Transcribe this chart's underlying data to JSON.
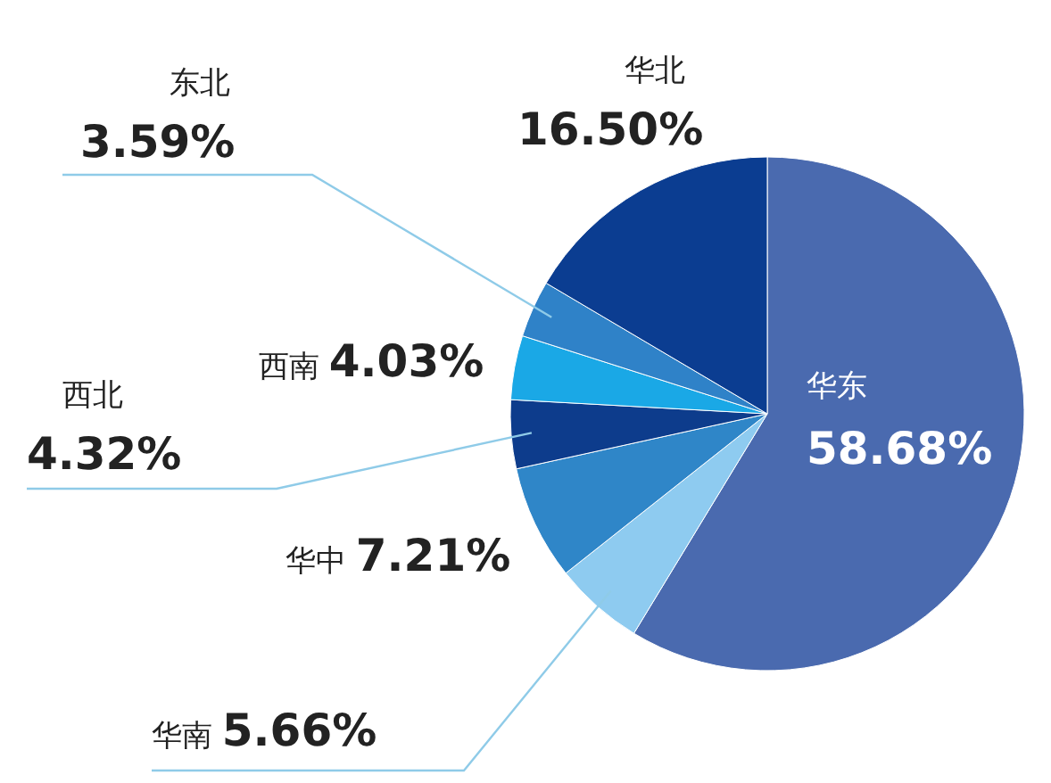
{
  "chart_data": {
    "type": "pie",
    "categories": [
      "华东",
      "华南",
      "华中",
      "西北",
      "西南",
      "东北",
      "华北"
    ],
    "values": [
      58.68,
      5.66,
      7.21,
      4.32,
      4.03,
      3.59,
      16.5
    ],
    "colors": [
      "#4a6aaf",
      "#8ecbf0",
      "#2f86c8",
      "#0d3c8c",
      "#1aa8e6",
      "#2f82c8",
      "#0b3d91"
    ],
    "value_labels": [
      "58.68%",
      "5.66%",
      "7.21%",
      "4.32%",
      "4.03%",
      "3.59%",
      "16.50%"
    ]
  }
}
